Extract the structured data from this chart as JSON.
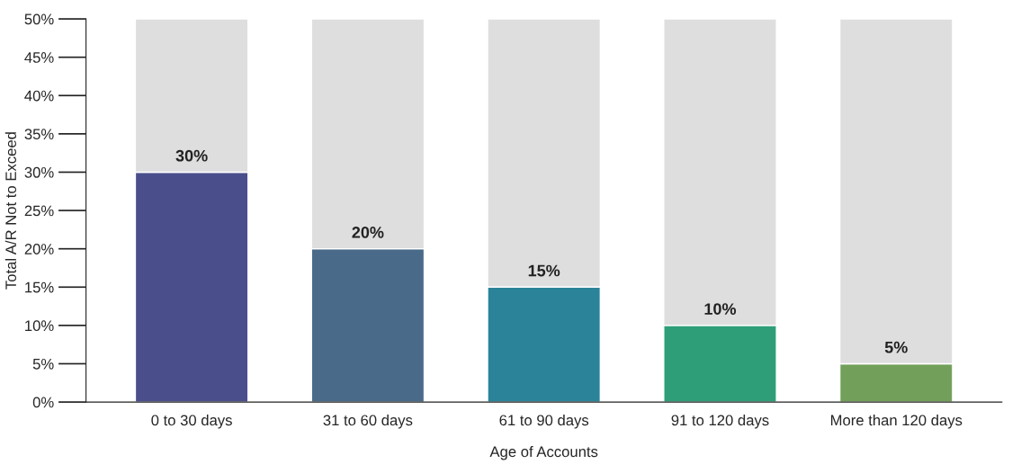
{
  "chart_data": {
    "type": "bar",
    "stacked": true,
    "xlabel": "Age of Accounts",
    "ylabel": "Total A/R Not to Exceed",
    "categories": [
      "0 to 30 days",
      "31 to 60 days",
      "61 to 90 days",
      "91 to 120 days",
      "More than 120 days"
    ],
    "series": [
      {
        "colors": [
          "#4a4f8c",
          "#4a6a8a",
          "#2a8399",
          "#2e9e78",
          "#72a05a"
        ],
        "values": [
          30,
          20,
          15,
          10,
          5
        ],
        "value_labels": [
          "30%",
          "20%",
          "15%",
          "10%",
          "5%"
        ]
      },
      {
        "color": "#dedede",
        "values": [
          20,
          30,
          35,
          40,
          45
        ]
      }
    ],
    "ylim": [
      0,
      50
    ],
    "yticks": [
      {
        "value": 0,
        "label": "0%"
      },
      {
        "value": 5,
        "label": "5%"
      },
      {
        "value": 10,
        "label": "10%"
      },
      {
        "value": 15,
        "label": "15%"
      },
      {
        "value": 20,
        "label": "20%"
      },
      {
        "value": 25,
        "label": "25%"
      },
      {
        "value": 30,
        "label": "30%"
      },
      {
        "value": 35,
        "label": "35%"
      },
      {
        "value": 40,
        "label": "40%"
      },
      {
        "value": 45,
        "label": "45%"
      },
      {
        "value": 50,
        "label": "50%"
      }
    ],
    "grid": false,
    "legend": false
  }
}
